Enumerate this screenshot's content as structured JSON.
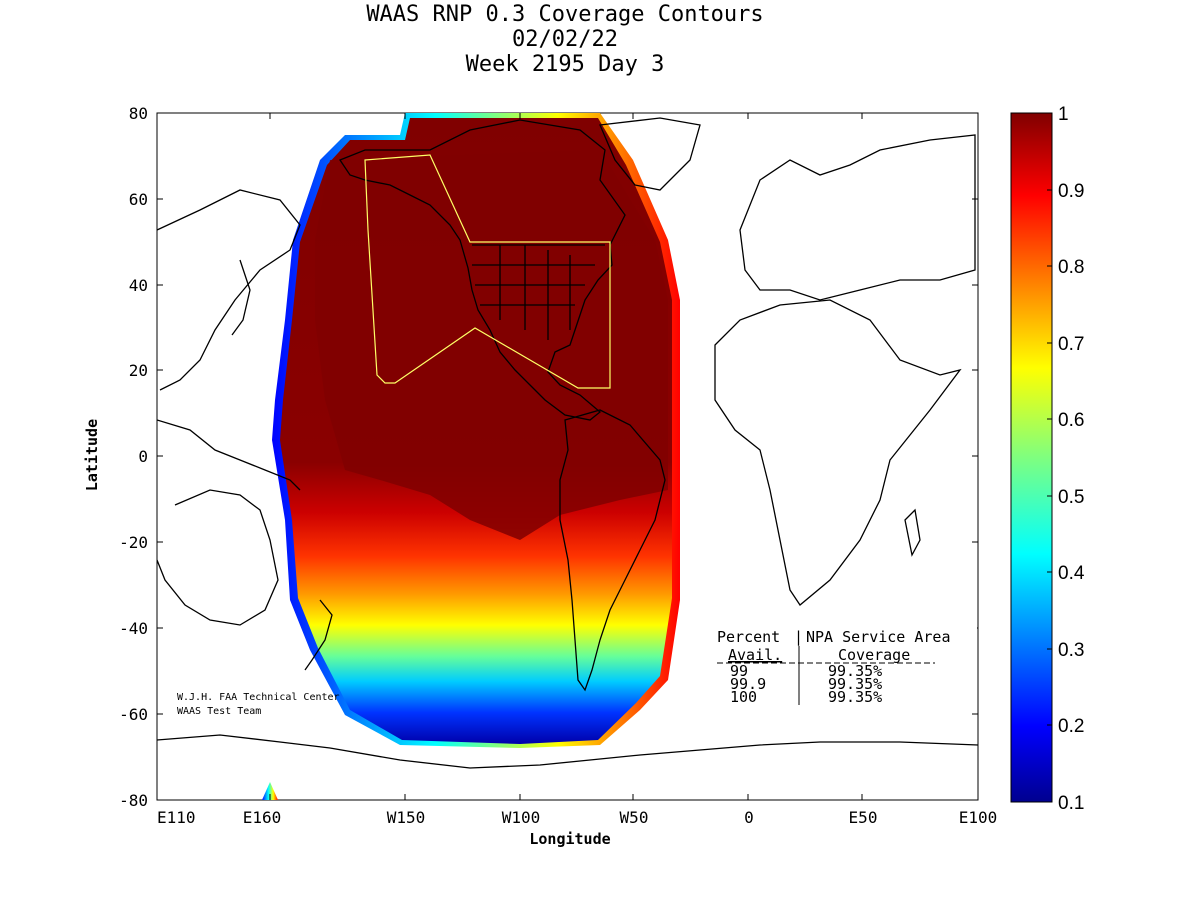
{
  "title": {
    "line1": "WAAS RNP 0.3 Coverage Contours",
    "line2": "02/02/22",
    "line3": "Week 2195 Day 3"
  },
  "axes": {
    "xlabel": "Longitude",
    "ylabel": "Latitude",
    "lon_range": [
      110,
      280
    ],
    "lat_range": [
      -80,
      80
    ],
    "x_ticks": [
      "E110",
      "E160",
      "W150",
      "W100",
      "W50",
      "0",
      "E50",
      "E100"
    ],
    "y_ticks": [
      "80",
      "60",
      "40",
      "20",
      "0",
      "-20",
      "-40",
      "-60",
      "-80"
    ]
  },
  "colorbar": {
    "range": [
      0.1,
      1
    ],
    "ticks": [
      "1",
      "0.9",
      "0.8",
      "0.7",
      "0.6",
      "0.5",
      "0.4",
      "0.3",
      "0.2",
      "0.1"
    ],
    "colormap": "jet"
  },
  "credit": {
    "line1": "W.J.H. FAA Technical Center",
    "line2": "WAAS Test Team"
  },
  "coverage_table": {
    "header1_left": "Percent",
    "header1_right": "NPA Service Area",
    "header2_left": "Avail.",
    "header2_right": "Coverage",
    "rows": [
      {
        "avail": "99",
        "coverage": "99.35%"
      },
      {
        "avail": "99.9",
        "coverage": "99.35%"
      },
      {
        "avail": "100",
        "coverage": "99.35%"
      }
    ]
  },
  "chart_data": {
    "type": "heatmap",
    "title": "WAAS RNP 0.3 Coverage Contours",
    "subtitle": [
      "02/02/22",
      "Week 2195 Day 3"
    ],
    "xlabel": "Longitude",
    "ylabel": "Latitude",
    "value_range": [
      0.1,
      1
    ],
    "service_area_coverage": {
      "99": "99.35%",
      "99.9": "99.35%",
      "100": "99.35%"
    }
  },
  "colors": {
    "contour_max": "#800000",
    "contour_min": "#000080",
    "service_area_outline": "#ffff66"
  }
}
